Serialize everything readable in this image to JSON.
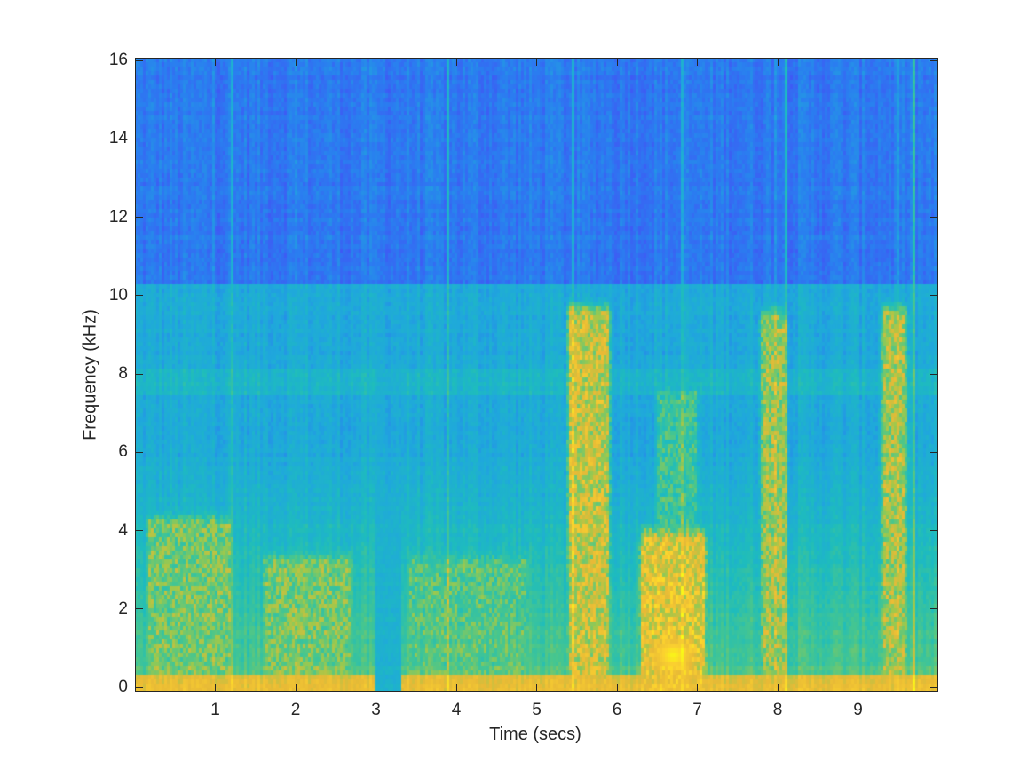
{
  "chart_data": {
    "type": "heatmap",
    "subtype": "spectrogram",
    "title": "",
    "xlabel": "Time (secs)",
    "ylabel": "Frequency (kHz)",
    "xlim": [
      0,
      10
    ],
    "ylim": [
      0,
      16.1
    ],
    "xticks": [
      1,
      2,
      3,
      4,
      5,
      6,
      7,
      8,
      9
    ],
    "xtick_labels": [
      "1",
      "2",
      "3",
      "4",
      "5",
      "6",
      "7",
      "8",
      "9"
    ],
    "yticks": [
      0,
      2,
      4,
      6,
      8,
      10,
      12,
      14,
      16
    ],
    "ytick_labels": [
      "0",
      "2",
      "4",
      "6",
      "8",
      "10",
      "12",
      "14",
      "16"
    ],
    "grid": false,
    "colormap": "parula",
    "colormap_stops": [
      "#3e26a8",
      "#4352f5",
      "#2a7ef0",
      "#1fa8dc",
      "#1ebcbd",
      "#47c68e",
      "#9ec84c",
      "#e8ba36",
      "#fbd12f",
      "#f9fb15"
    ],
    "notes": "Energy concentrated below ~10.3 kHz; band edge visible at ~7.8 kHz; strongest energy in speech-like segments",
    "high_energy_segments": [
      {
        "t_start": 0.05,
        "t_end": 1.3,
        "f_max_khz": 5.0,
        "peak_level": 0.72
      },
      {
        "t_start": 1.5,
        "t_end": 2.8,
        "f_max_khz": 4.0,
        "peak_level": 0.72
      },
      {
        "t_start": 3.3,
        "t_end": 5.0,
        "f_max_khz": 4.0,
        "peak_level": 0.66
      },
      {
        "t_start": 5.3,
        "t_end": 6.0,
        "f_max_khz": 10.3,
        "peak_level": 0.85
      },
      {
        "t_start": 6.2,
        "t_end": 7.2,
        "f_max_khz": 4.6,
        "peak_level": 0.92
      },
      {
        "t_start": 6.4,
        "t_end": 7.1,
        "f_max_khz": 8.3,
        "peak_level": 0.62
      },
      {
        "t_start": 7.7,
        "t_end": 8.2,
        "f_max_khz": 10.2,
        "peak_level": 0.78
      },
      {
        "t_start": 9.2,
        "t_end": 9.7,
        "f_max_khz": 10.3,
        "peak_level": 0.8
      }
    ],
    "band_cutoff_khz": 10.3,
    "secondary_band_khz": 7.8,
    "quiet_interval_secs": [
      3.0,
      3.3
    ],
    "peak_frequency_point": {
      "t": 6.7,
      "f_khz": 0.8,
      "level": 1.0
    }
  }
}
